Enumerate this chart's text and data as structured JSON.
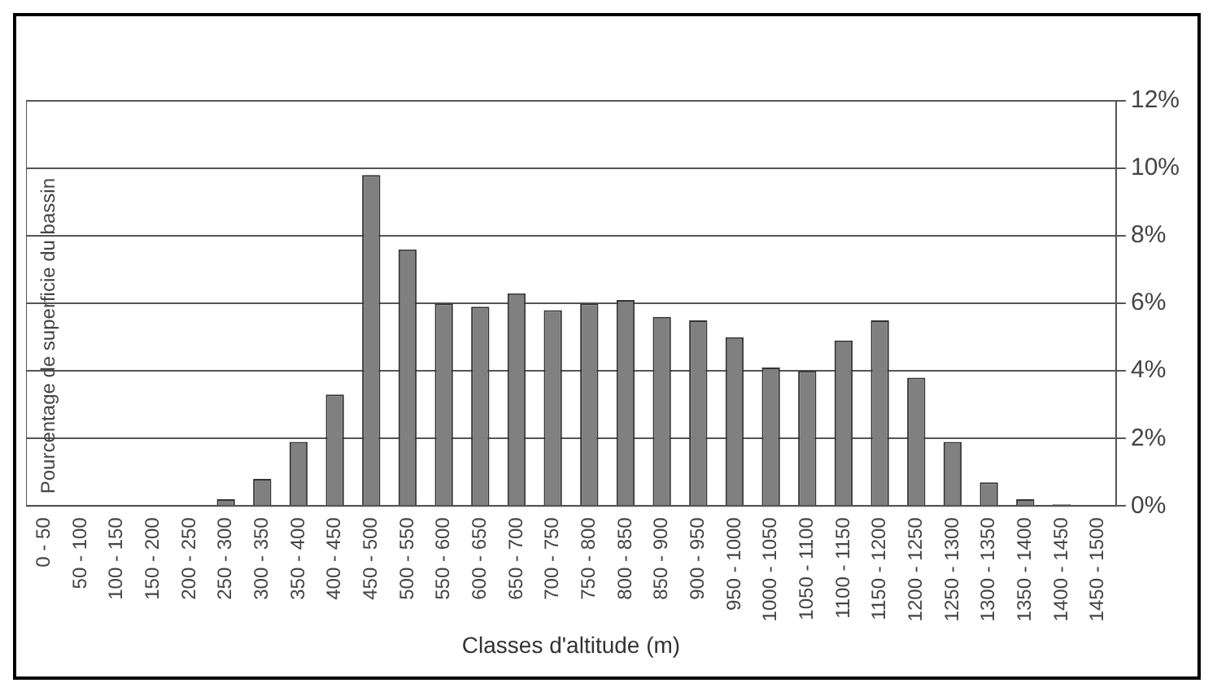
{
  "chart_data": {
    "type": "bar",
    "xlabel": "Classes d'altitude (m)",
    "ylabel": "Pourcentage de superficie du bassin",
    "categories": [
      "0 - 50",
      "50 - 100",
      "100 - 150",
      "150 - 200",
      "200 - 250",
      "250 - 300",
      "300 - 350",
      "350 - 400",
      "400 - 450",
      "450 - 500",
      "500 - 550",
      "550 - 600",
      "600 - 650",
      "650 - 700",
      "700 - 750",
      "750 - 800",
      "800 - 850",
      "850 - 900",
      "900 - 950",
      "950 - 1000",
      "1000 - 1050",
      "1050 - 1100",
      "1100 - 1150",
      "1150 - 1200",
      "1200 - 1250",
      "1250 - 1300",
      "1300 - 1350",
      "1350 - 1400",
      "1400 - 1450",
      "1450 - 1500"
    ],
    "values": [
      0,
      0,
      0,
      0,
      0,
      0.2,
      0.8,
      1.9,
      3.3,
      9.8,
      7.6,
      6.0,
      5.9,
      6.3,
      5.8,
      6.0,
      6.1,
      5.6,
      5.5,
      5.0,
      4.1,
      4.0,
      4.9,
      5.5,
      3.8,
      1.9,
      0.7,
      0.2,
      0.05,
      0
    ],
    "color": "#808080",
    "ylim": [
      0,
      12
    ],
    "yticks": [
      {
        "value": 0,
        "label": "0%"
      },
      {
        "value": 2,
        "label": "2%"
      },
      {
        "value": 4,
        "label": "4%"
      },
      {
        "value": 6,
        "label": "6%"
      },
      {
        "value": 8,
        "label": "8%"
      },
      {
        "value": 10,
        "label": "10%"
      },
      {
        "value": 12,
        "label": "12%"
      }
    ],
    "grid": "y"
  }
}
